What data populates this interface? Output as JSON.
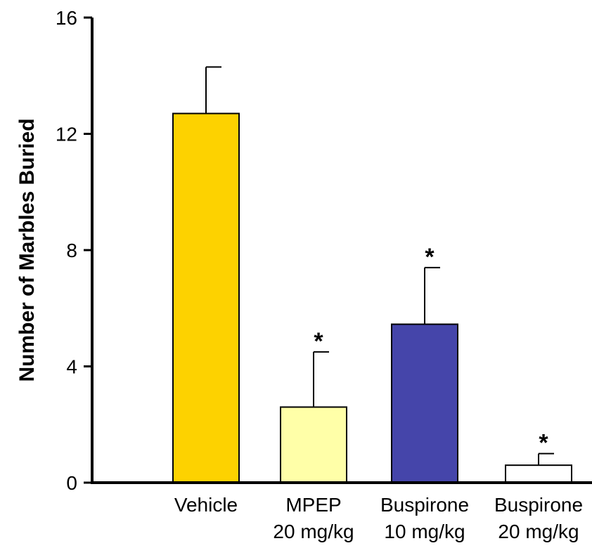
{
  "chart_data": {
    "type": "bar",
    "title": "",
    "xlabel": "",
    "ylabel": "Number of Marbles Buried",
    "ylim": [
      0,
      16
    ],
    "yticks": [
      0,
      4,
      8,
      12,
      16
    ],
    "grid": false,
    "categories": [
      {
        "line1": "Vehicle",
        "line2": ""
      },
      {
        "line1": "MPEP",
        "line2": "20 mg/kg"
      },
      {
        "line1": "Buspirone",
        "line2": "10 mg/kg"
      },
      {
        "line1": "Buspirone",
        "line2": "20 mg/kg"
      }
    ],
    "values": [
      12.7,
      2.6,
      5.45,
      0.6
    ],
    "errors": [
      1.6,
      1.9,
      1.95,
      0.4
    ],
    "significance": [
      "",
      "*",
      "*",
      "*"
    ],
    "colors": [
      "#FDD200",
      "#FFFFA8",
      "#4545AA",
      "#FFFFFF"
    ]
  }
}
